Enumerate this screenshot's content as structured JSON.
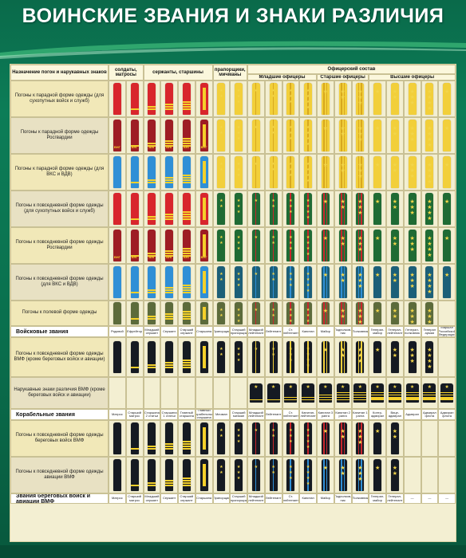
{
  "title": "ВОИНСКИЕ ЗВАНИЯ И ЗНАКИ РАЗЛИЧИЯ",
  "header": {
    "purpose": "Назначение погон и нарукавных знаков",
    "soldiers": "солдаты, матросы",
    "sergeants": "сержанты, старшины",
    "warrant": "прапорщики, мичманы",
    "officers": "Офицерский состав",
    "junior": "Младшие офицеры",
    "senior": "Старшие офицеры",
    "higher": "Высшие офицеры"
  },
  "rows": [
    "Погоны к парадной форме одежды (для сухопутных войск и служб)",
    "Погоны к парадной форме одежды Росгвардии",
    "Погоны к парадной форме одежды (для ВКС и ВДВ)",
    "Погоны к повседневной форме одежды (для сухопутных войск и служб)",
    "Погоны к повседневной форме одежды Росгвардии",
    "Погоны к повседневной форме одежды (для ВКС и ВДВ)",
    "Погоны к полевой форме одежды"
  ],
  "section_army": "Войсковые звания",
  "army_ranks": [
    "Рядовой",
    "Ефрейтор",
    "Младший сержант",
    "Сержант",
    "Старший сержант",
    "Старшина",
    "Прапорщик",
    "Старший прапорщик",
    "Младший лейтенант",
    "Лейтенант",
    "Ст. лейтенант",
    "Капитан",
    "Майор",
    "Подполков-ник",
    "Полковник",
    "Генерал-майор",
    "Генерал-лейтенант",
    "Генерал-полковник",
    "Генерал армии",
    "Маршал Российской Федерации"
  ],
  "navy_rows": [
    "Погоны к повседневной форме одежды ВМФ (кроме береговых войск и авиации)",
    "Нарукавные знаки различия ВМФ (кроме береговых войск и авиации)"
  ],
  "section_ship": "Корабельные звания",
  "section_ship_note": "(кроме береговых войск и авиации)",
  "ship_ranks": [
    "Матрос",
    "Старший матрос",
    "Старшина 2 статьи",
    "Старшина 1 статьи",
    "Главный старшина",
    "Главный корабельный старшина",
    "Мичман",
    "Старший мичман",
    "Младший лейтенант",
    "Лейтенант",
    "Ст. лейтенант",
    "Капитан-лейтенант",
    "Капитан 3 ранга",
    "Капитан 2 ранга",
    "Капитан 1 ранга",
    "Контр-адмирал",
    "Вице-адмирал",
    "Адмирал",
    "Адмирал флота",
    "Адмирал флота"
  ],
  "coast_rows": [
    "Погоны к повседневной форме одежды береговых войск ВМФ",
    "Погоны к повседневной форме одежды авиации ВМФ"
  ],
  "section_coast": "Звания береговых войск и авиации ВМФ",
  "coast_ranks": [
    "Матрос",
    "Старший матрос",
    "Младший сержант",
    "Сержант",
    "Старший сержант",
    "Старшина",
    "Прапорщик",
    "Старший прапорщик",
    "Младший лейтенант",
    "Лейтенант",
    "Ст. лейтенант",
    "Капитан",
    "Майор",
    "Подполков-ник",
    "Полковник",
    "Генерал-майор",
    "Генерал-лейтенант",
    "—",
    "—",
    "—"
  ],
  "colors": {
    "bg": "#0a6f4d",
    "red": "#d8262c",
    "darkred": "#9e1d24",
    "blue": "#2f8fd6",
    "green": "#1f6b34",
    "black": "#151a22",
    "gold": "#f2cf3a"
  }
}
